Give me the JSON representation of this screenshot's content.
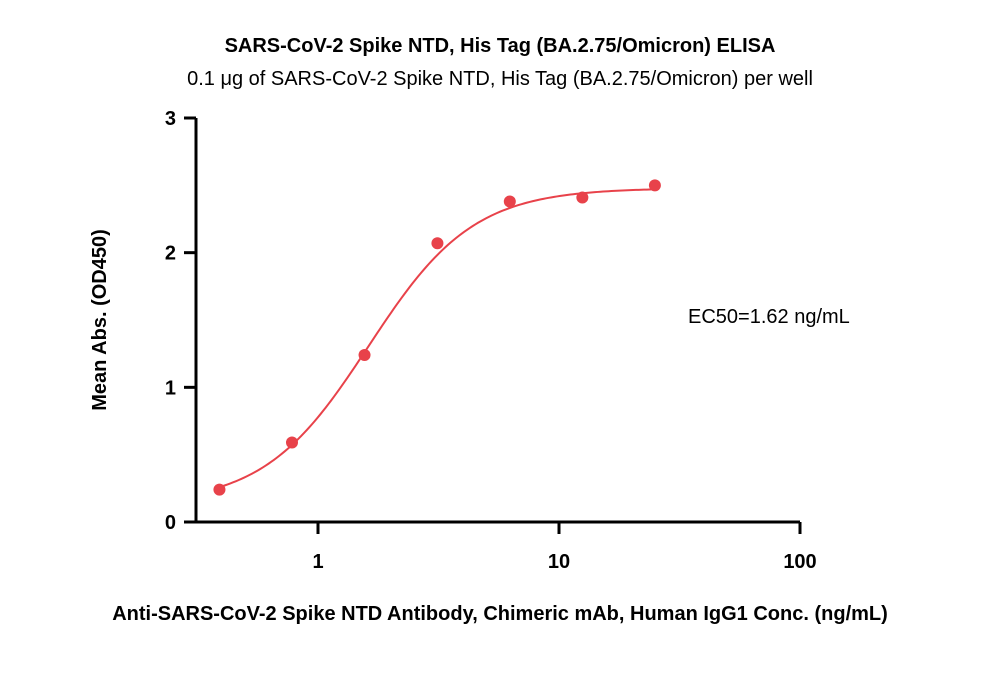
{
  "chart_data": {
    "type": "scatter",
    "title": "SARS-CoV-2 Spike NTD, His Tag (BA.2.75/Omicron) ELISA",
    "subtitle": "0.1 μg of SARS-CoV-2 Spike NTD, His Tag (BA.2.75/Omicron) per well",
    "xlabel": "Anti-SARS-CoV-2 Spike NTD Antibody, Chimeric mAb, Human IgG1 Conc. (ng/mL)",
    "ylabel": "Mean Abs. (OD450)",
    "x_scale": "log",
    "xlim": [
      0.3,
      100
    ],
    "ylim": [
      0,
      3
    ],
    "x_ticks": [
      1,
      10,
      100
    ],
    "x_tick_labels": [
      "1",
      "10",
      "100"
    ],
    "y_ticks": [
      0,
      1,
      2,
      3
    ],
    "y_tick_labels": [
      "0",
      "1",
      "2",
      "3"
    ],
    "grid": false,
    "annotation": "EC50=1.62 ng/mL",
    "series": [
      {
        "x": [
          0.39,
          0.78,
          1.56,
          3.13,
          6.25,
          12.5,
          25
        ],
        "y": [
          0.24,
          0.59,
          1.24,
          2.07,
          2.38,
          2.41,
          2.5
        ]
      }
    ],
    "fit": {
      "model": "4PL",
      "bottom": 0.13,
      "top": 2.48,
      "ec50": 1.62,
      "hill": 2.0
    },
    "color": "#e8424a"
  }
}
